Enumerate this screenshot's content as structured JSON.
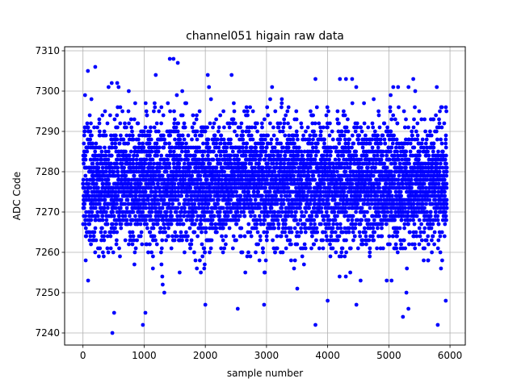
{
  "chart_data": {
    "type": "scatter",
    "title": "channel051 higain raw data",
    "xlabel": "sample number",
    "ylabel": "ADC Code",
    "xlim": [
      -300,
      6250
    ],
    "ylim": [
      7237,
      7311
    ],
    "xticks": [
      0,
      1000,
      2000,
      3000,
      4000,
      5000,
      6000
    ],
    "yticks": [
      7240,
      7250,
      7260,
      7270,
      7280,
      7290,
      7300,
      7310
    ],
    "grid": true,
    "marker_color": "#0000ff",
    "n_points": 5950,
    "x_range": [
      0,
      5950
    ],
    "band": {
      "center": 7277,
      "core_low": 7258,
      "core_high": 7293
    },
    "outliers": [
      {
        "x": 480,
        "y": 7240
      },
      {
        "x": 980,
        "y": 7242
      },
      {
        "x": 1020,
        "y": 7245
      },
      {
        "x": 510,
        "y": 7245
      },
      {
        "x": 3800,
        "y": 7242
      },
      {
        "x": 5800,
        "y": 7242
      },
      {
        "x": 1420,
        "y": 7308
      },
      {
        "x": 1480,
        "y": 7308
      },
      {
        "x": 1550,
        "y": 7307
      },
      {
        "x": 200,
        "y": 7306
      },
      {
        "x": 80,
        "y": 7305
      },
      {
        "x": 1190,
        "y": 7304
      },
      {
        "x": 2040,
        "y": 7304
      },
      {
        "x": 2430,
        "y": 7304
      },
      {
        "x": 5400,
        "y": 7303
      },
      {
        "x": 4300,
        "y": 7303
      },
      {
        "x": 4400,
        "y": 7303
      },
      {
        "x": 4200,
        "y": 7303
      },
      {
        "x": 470,
        "y": 7302
      },
      {
        "x": 560,
        "y": 7302
      },
      {
        "x": 3800,
        "y": 7303
      },
      {
        "x": 2530,
        "y": 7246
      },
      {
        "x": 2960,
        "y": 7247
      },
      {
        "x": 2000,
        "y": 7247
      },
      {
        "x": 5320,
        "y": 7246
      },
      {
        "x": 5230,
        "y": 7244
      },
      {
        "x": 4000,
        "y": 7248
      },
      {
        "x": 5930,
        "y": 7248
      },
      {
        "x": 4470,
        "y": 7247
      },
      {
        "x": 1330,
        "y": 7250
      }
    ]
  }
}
